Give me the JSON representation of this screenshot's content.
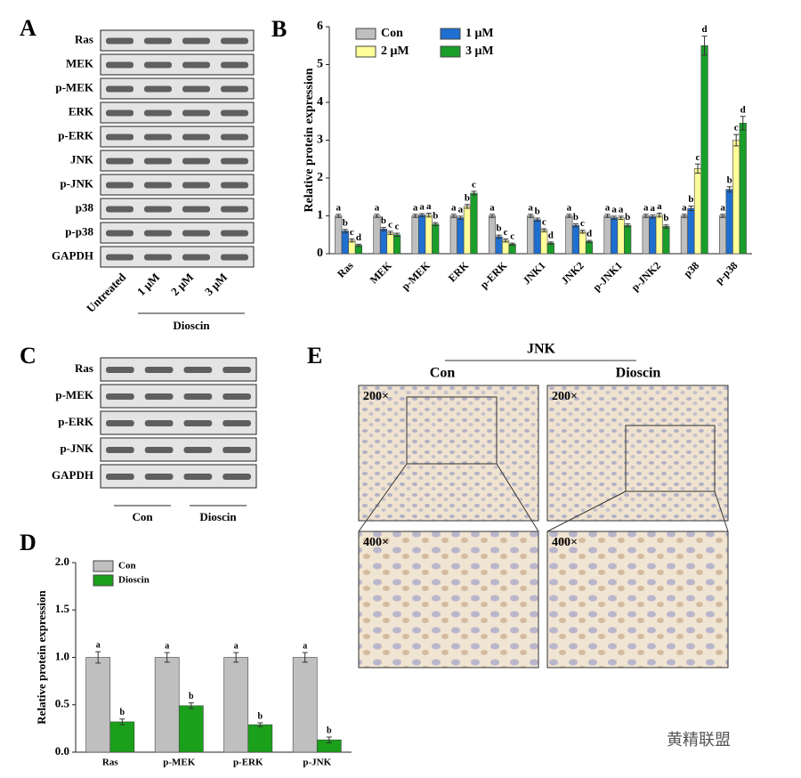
{
  "chart_data": [
    {
      "type": "bar",
      "label": "B",
      "y_label": "Relative protein expression",
      "categories": [
        "Ras",
        "MEK",
        "p-MEK",
        "ERK",
        "p-ERK",
        "JNK1",
        "JNK2",
        "p-JNK1",
        "p-JNK2",
        "p38",
        "p-p38"
      ],
      "series": [
        {
          "name": "Con",
          "color": "#bfbfbf",
          "values": [
            1,
            1,
            1,
            1,
            1,
            1,
            1,
            1,
            1,
            1,
            1
          ],
          "errors": [
            0.04,
            0.04,
            0.04,
            0.04,
            0.04,
            0.04,
            0.04,
            0.04,
            0.04,
            0.04,
            0.04
          ],
          "letters": [
            "a",
            "a",
            "a",
            "a",
            "a",
            "a",
            "a",
            "a",
            "a",
            "a",
            "a"
          ]
        },
        {
          "name": "1 μM",
          "color": "#1f6fd0",
          "values": [
            0.6,
            0.65,
            1.02,
            0.95,
            0.45,
            0.9,
            0.75,
            0.95,
            0.98,
            1.2,
            1.7
          ],
          "errors": [
            0.04,
            0.04,
            0.04,
            0.04,
            0.04,
            0.04,
            0.04,
            0.04,
            0.04,
            0.06,
            0.07
          ],
          "letters": [
            "b",
            "b",
            "a",
            "a",
            "b",
            "b",
            "b",
            "a",
            "a",
            "b",
            "b"
          ]
        },
        {
          "name": "2 μM",
          "color": "#ffff99",
          "values": [
            0.35,
            0.55,
            1.02,
            1.25,
            0.35,
            0.62,
            0.58,
            0.95,
            1.02,
            2.25,
            3.0
          ],
          "errors": [
            0.04,
            0.04,
            0.05,
            0.05,
            0.04,
            0.04,
            0.04,
            0.04,
            0.05,
            0.12,
            0.15
          ],
          "letters": [
            "c",
            "c",
            "a",
            "b",
            "c",
            "c",
            "c",
            "a",
            "a",
            "c",
            "c"
          ]
        },
        {
          "name": "3 μM",
          "color": "#1a9e2a",
          "values": [
            0.22,
            0.5,
            0.78,
            1.6,
            0.25,
            0.28,
            0.32,
            0.75,
            0.72,
            5.5,
            3.45
          ],
          "errors": [
            0.03,
            0.04,
            0.04,
            0.05,
            0.03,
            0.03,
            0.03,
            0.04,
            0.04,
            0.25,
            0.18
          ],
          "letters": [
            "d",
            "c",
            "b",
            "c",
            "c",
            "d",
            "d",
            "b",
            "b",
            "d",
            "d"
          ]
        }
      ],
      "ylim": [
        0,
        6
      ],
      "yticks": [
        0,
        1,
        2,
        3,
        4,
        5,
        6
      ]
    },
    {
      "type": "bar",
      "label": "D",
      "y_label": "Relative protein expression",
      "categories": [
        "Ras",
        "p-MEK",
        "p-ERK",
        "p-JNK"
      ],
      "series": [
        {
          "name": "Con",
          "color": "#bfbfbf",
          "values": [
            1,
            1,
            1,
            1
          ],
          "errors": [
            0.06,
            0.05,
            0.05,
            0.05
          ],
          "letters": [
            "a",
            "a",
            "a",
            "a"
          ]
        },
        {
          "name": "Dioscin",
          "color": "#1aa01a",
          "values": [
            0.32,
            0.49,
            0.29,
            0.13
          ],
          "errors": [
            0.03,
            0.03,
            0.02,
            0.03
          ],
          "letters": [
            "b",
            "b",
            "b",
            "b"
          ]
        }
      ],
      "ylim": [
        0,
        2
      ],
      "yticks": [
        {
          "value": 0,
          "label": "0.0"
        },
        {
          "value": 0.5,
          "label": "0.5"
        },
        {
          "value": 1,
          "label": "1.0"
        },
        {
          "value": 1.5,
          "label": "1.5"
        },
        {
          "value": 2,
          "label": "2.0"
        }
      ]
    }
  ],
  "panels": {
    "A": {
      "label": "A",
      "rows": [
        "Ras",
        "MEK",
        "p-MEK",
        "ERK",
        "p-ERK",
        "JNK",
        "p-JNK",
        "p38",
        "p-p38",
        "GAPDH"
      ],
      "lanes": [
        "Untreated",
        "1 μM",
        "2 μM",
        "3 μM"
      ],
      "group": "Dioscin"
    },
    "C": {
      "label": "C",
      "rows": [
        "Ras",
        "p-MEK",
        "p-ERK",
        "p-JNK",
        "GAPDH"
      ],
      "groups": [
        "Con",
        "Dioscin"
      ]
    },
    "E": {
      "label": "E",
      "title": "JNK",
      "columns": [
        "Con",
        "Dioscin"
      ],
      "magnifications": [
        "200×",
        "200×",
        "400×",
        "400×"
      ]
    }
  },
  "watermark": "黄精联盟"
}
